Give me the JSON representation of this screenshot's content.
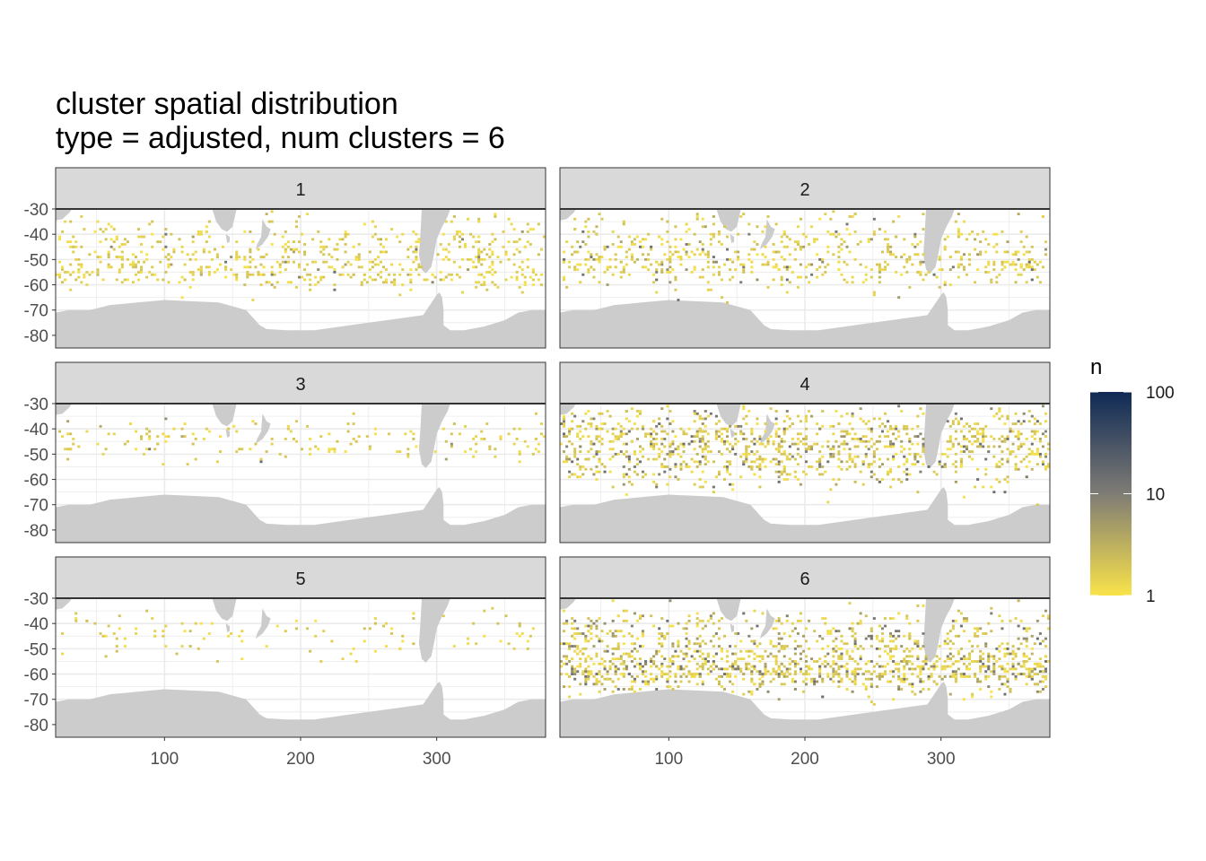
{
  "chart_data": {
    "type": "heatmap",
    "title": "cluster spatial distribution",
    "subtitle": "type = adjusted, num clusters = 6",
    "xlabel": "",
    "ylabel": "",
    "xlim": [
      20,
      380
    ],
    "ylim": [
      -85,
      -30
    ],
    "x_ticks": [
      100,
      200,
      300
    ],
    "y_ticks": [
      -30,
      -40,
      -50,
      -60,
      -70,
      -80
    ],
    "grid": true,
    "facets": [
      "1",
      "2",
      "3",
      "4",
      "5",
      "6"
    ],
    "facet_layout": {
      "ncol": 2,
      "nrow": 3
    },
    "legend": {
      "title": "n",
      "position": "right",
      "scale": "log10",
      "breaks": [
        "1",
        "10",
        "100"
      ],
      "colors": [
        "#f9e34a",
        "#7f7c75",
        "#0f2a55"
      ]
    },
    "land_color": "#cccccc",
    "panel_background": "#ffffff",
    "grid_color": "#ebebeb",
    "strip_background": "#d9d9d9",
    "panels": [
      {
        "facet": "1",
        "n_cells": 650,
        "frac_dark": 0.05,
        "bands": [
          {
            "lat": -48,
            "sd": 4,
            "w": 2
          },
          {
            "lat": -56,
            "sd": 3,
            "w": 2
          },
          {
            "lat": -40,
            "sd": 5,
            "w": 1
          }
        ]
      },
      {
        "facet": "2",
        "n_cells": 650,
        "frac_dark": 0.15,
        "bands": [
          {
            "lat": -52,
            "sd": 4,
            "w": 2
          },
          {
            "lat": -40,
            "sd": 5,
            "w": 1
          }
        ]
      },
      {
        "facet": "3",
        "n_cells": 180,
        "frac_dark": 0.02,
        "bands": [
          {
            "lat": -45,
            "sd": 4,
            "w": 1
          }
        ]
      },
      {
        "facet": "4",
        "n_cells": 1100,
        "frac_dark": 0.25,
        "bands": [
          {
            "lat": -50,
            "sd": 7,
            "w": 2
          },
          {
            "lat": -40,
            "sd": 5,
            "w": 1
          }
        ]
      },
      {
        "facet": "5",
        "n_cells": 110,
        "frac_dark": 0.0,
        "bands": [
          {
            "lat": -45,
            "sd": 5,
            "w": 1
          }
        ]
      },
      {
        "facet": "6",
        "n_cells": 1400,
        "frac_dark": 0.3,
        "bands": [
          {
            "lat": -58,
            "sd": 5,
            "w": 2
          },
          {
            "lat": -45,
            "sd": 6,
            "w": 1
          }
        ]
      }
    ]
  }
}
